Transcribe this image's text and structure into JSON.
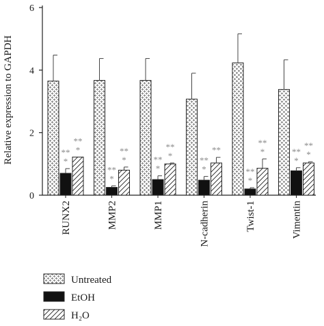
{
  "chart_data": {
    "type": "bar",
    "ylabel": "Relative expression to GAPDH",
    "ylim": [
      0,
      6
    ],
    "yticks": [
      "0",
      "2",
      "4",
      "6"
    ],
    "categories": [
      "RUNX2",
      "MMP2",
      "MMP1",
      "N-cadherin",
      "Twist-1",
      "Vimentin"
    ],
    "series": [
      {
        "name": "Untreated",
        "pattern": "dots",
        "color": "#ffffff",
        "values": [
          3.65,
          3.67,
          3.67,
          3.07,
          4.23,
          3.38
        ],
        "errors": [
          0.83,
          0.7,
          0.7,
          0.83,
          0.93,
          0.95
        ],
        "sig": [
          "",
          "",
          "",
          "",
          "",
          ""
        ]
      },
      {
        "name": "EtOH",
        "pattern": "solid",
        "color": "#111111",
        "values": [
          0.7,
          0.25,
          0.5,
          0.48,
          0.2,
          0.78
        ],
        "errors": [
          0.15,
          0.05,
          0.12,
          0.12,
          0.04,
          0.1
        ],
        "sig": [
          "**\n*",
          "**\n*",
          "**\n*",
          "**\n*",
          "**\n*",
          "**\n*"
        ]
      },
      {
        "name": "H₂O",
        "pattern": "hatch",
        "color": "#ffffff",
        "values": [
          1.22,
          0.8,
          1.0,
          1.03,
          0.86,
          1.03
        ],
        "errors": [
          0.0,
          0.1,
          0.03,
          0.18,
          0.3,
          0.04
        ],
        "sig": [
          "**\n*",
          "**\n*",
          "**\n*",
          "**",
          "**\n*",
          "**\n*"
        ]
      }
    ],
    "legend_position": "bottom-left"
  }
}
